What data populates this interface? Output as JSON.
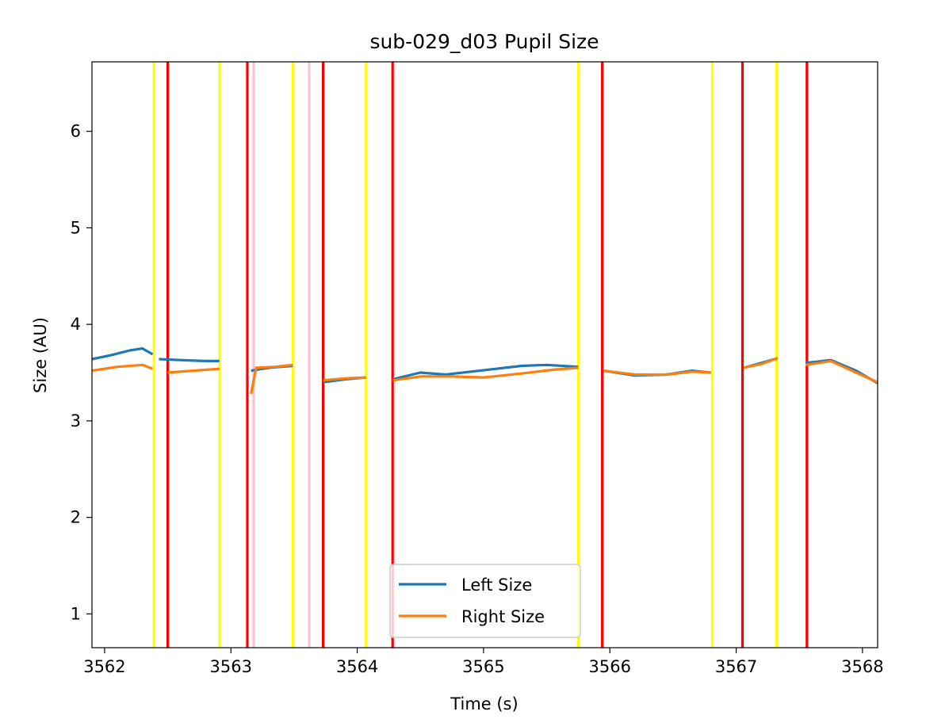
{
  "chart_data": {
    "type": "line",
    "title": "sub-029_d03 Pupil Size",
    "xlabel": "Time (s)",
    "ylabel": "Size (AU)",
    "xlim": [
      3561.9,
      3568.12
    ],
    "ylim": [
      0.65,
      6.72
    ],
    "xticks": [
      3562,
      3563,
      3564,
      3565,
      3566,
      3567,
      3568
    ],
    "yticks": [
      1,
      2,
      3,
      4,
      5,
      6
    ],
    "grid": false,
    "legend_position": "lower-center",
    "series": [
      {
        "name": "Left Size",
        "color": "#1f77b4",
        "segments": [
          [
            [
              3561.9,
              3.64
            ],
            [
              3562.05,
              3.68
            ],
            [
              3562.2,
              3.73
            ],
            [
              3562.3,
              3.75
            ],
            [
              3562.38,
              3.69
            ]
          ],
          [
            [
              3562.43,
              3.64
            ],
            [
              3562.6,
              3.63
            ],
            [
              3562.8,
              3.62
            ],
            [
              3562.91,
              3.62
            ]
          ],
          [
            [
              3563.16,
              3.52
            ],
            [
              3563.3,
              3.55
            ],
            [
              3563.49,
              3.57
            ]
          ],
          [
            [
              3563.73,
              3.4
            ],
            [
              3563.9,
              3.43
            ],
            [
              3564.07,
              3.45
            ]
          ],
          [
            [
              3564.28,
              3.43
            ],
            [
              3564.5,
              3.5
            ],
            [
              3564.7,
              3.48
            ],
            [
              3564.9,
              3.51
            ],
            [
              3565.1,
              3.54
            ],
            [
              3565.3,
              3.57
            ],
            [
              3565.5,
              3.58
            ],
            [
              3565.75,
              3.56
            ]
          ],
          [
            [
              3565.95,
              3.52
            ],
            [
              3566.2,
              3.47
            ],
            [
              3566.45,
              3.48
            ],
            [
              3566.65,
              3.52
            ],
            [
              3566.8,
              3.5
            ]
          ],
          [
            [
              3567.06,
              3.55
            ],
            [
              3567.2,
              3.6
            ],
            [
              3567.33,
              3.65
            ]
          ],
          [
            [
              3567.55,
              3.6
            ],
            [
              3567.75,
              3.63
            ],
            [
              3567.95,
              3.52
            ],
            [
              3568.12,
              3.39
            ]
          ]
        ]
      },
      {
        "name": "Right Size",
        "color": "#ff7f0e",
        "segments": [
          [
            [
              3561.9,
              3.52
            ],
            [
              3562.1,
              3.56
            ],
            [
              3562.3,
              3.58
            ],
            [
              3562.38,
              3.54
            ]
          ],
          [
            [
              3562.5,
              3.5
            ],
            [
              3562.7,
              3.52
            ],
            [
              3562.91,
              3.54
            ]
          ],
          [
            [
              3563.16,
              3.28
            ],
            [
              3563.2,
              3.55
            ],
            [
              3563.35,
              3.56
            ],
            [
              3563.49,
              3.58
            ]
          ],
          [
            [
              3563.73,
              3.42
            ],
            [
              3563.9,
              3.44
            ],
            [
              3564.07,
              3.45
            ]
          ],
          [
            [
              3564.28,
              3.42
            ],
            [
              3564.5,
              3.46
            ],
            [
              3564.75,
              3.46
            ],
            [
              3565.0,
              3.45
            ],
            [
              3565.3,
              3.49
            ],
            [
              3565.55,
              3.53
            ],
            [
              3565.75,
              3.55
            ]
          ],
          [
            [
              3565.95,
              3.52
            ],
            [
              3566.2,
              3.48
            ],
            [
              3566.45,
              3.48
            ],
            [
              3566.65,
              3.51
            ],
            [
              3566.8,
              3.5
            ]
          ],
          [
            [
              3567.06,
              3.55
            ],
            [
              3567.2,
              3.59
            ],
            [
              3567.33,
              3.65
            ]
          ],
          [
            [
              3567.55,
              3.58
            ],
            [
              3567.75,
              3.62
            ],
            [
              3567.95,
              3.5
            ],
            [
              3568.12,
              3.4
            ]
          ]
        ]
      }
    ],
    "markers": [
      {
        "x": 3562.39,
        "color": "#ffff00"
      },
      {
        "x": 3562.5,
        "color": "#ff0000"
      },
      {
        "x": 3562.91,
        "color": "#ffff00"
      },
      {
        "x": 3563.13,
        "color": "#ff0000"
      },
      {
        "x": 3563.18,
        "color": "#ffc0cb"
      },
      {
        "x": 3563.49,
        "color": "#ffff00"
      },
      {
        "x": 3563.62,
        "color": "#ffc0cb"
      },
      {
        "x": 3563.73,
        "color": "#ff0000"
      },
      {
        "x": 3564.07,
        "color": "#ffff00"
      },
      {
        "x": 3564.28,
        "color": "#ff0000"
      },
      {
        "x": 3565.75,
        "color": "#ffff00"
      },
      {
        "x": 3565.94,
        "color": "#ff0000"
      },
      {
        "x": 3566.81,
        "color": "#ffff00"
      },
      {
        "x": 3567.05,
        "color": "#ff0000"
      },
      {
        "x": 3567.32,
        "color": "#ffff00"
      },
      {
        "x": 3567.56,
        "color": "#ff0000"
      }
    ],
    "legend": [
      {
        "label": "Left Size",
        "color": "#1f77b4"
      },
      {
        "label": "Right Size",
        "color": "#ff7f0e"
      }
    ]
  }
}
